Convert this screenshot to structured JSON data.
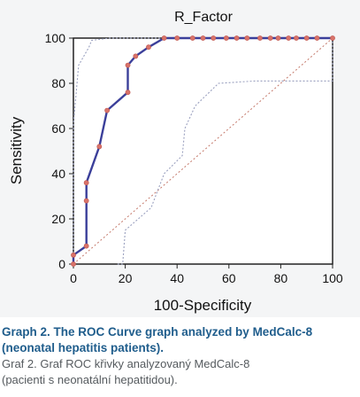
{
  "chart_data": {
    "type": "line",
    "title": "R_Factor",
    "xlabel": "100-Specificity",
    "ylabel": "Sensitivity",
    "xlim": [
      0,
      100
    ],
    "ylim": [
      0,
      100
    ],
    "x_ticks": [
      0,
      20,
      40,
      60,
      80,
      100
    ],
    "y_ticks": [
      0,
      20,
      40,
      60,
      80,
      100
    ],
    "grid": false,
    "series": [
      {
        "role": "roc",
        "color": "#3b3f9a",
        "points": [
          [
            0,
            0
          ],
          [
            0,
            4
          ],
          [
            5,
            8
          ],
          [
            5,
            28
          ],
          [
            5,
            36
          ],
          [
            10,
            52
          ],
          [
            13,
            68
          ],
          [
            21,
            76
          ],
          [
            21,
            88
          ],
          [
            24,
            92
          ],
          [
            29,
            96
          ],
          [
            35,
            100
          ],
          [
            40,
            100
          ],
          [
            46,
            100
          ],
          [
            50,
            100
          ],
          [
            54,
            100
          ],
          [
            59,
            100
          ],
          [
            63,
            100
          ],
          [
            67,
            100
          ],
          [
            72,
            100
          ],
          [
            76,
            100
          ],
          [
            79,
            100
          ],
          [
            83,
            100
          ],
          [
            86,
            100
          ],
          [
            90,
            100
          ],
          [
            94,
            100
          ],
          [
            100,
            100
          ]
        ]
      },
      {
        "role": "upper-confidence-bound",
        "color": "#9aa0bf",
        "points": [
          [
            0,
            0
          ],
          [
            0,
            62
          ],
          [
            2,
            88
          ],
          [
            6,
            96
          ],
          [
            7,
            99
          ],
          [
            14,
            100
          ],
          [
            100,
            100
          ]
        ]
      },
      {
        "role": "lower-confidence-bound",
        "color": "#9aa0bf",
        "points": [
          [
            17,
            0
          ],
          [
            19,
            0
          ],
          [
            20,
            15
          ],
          [
            30,
            25
          ],
          [
            35,
            40
          ],
          [
            42,
            48
          ],
          [
            43,
            60
          ],
          [
            47,
            70
          ],
          [
            56,
            80
          ],
          [
            70,
            81
          ],
          [
            100,
            81
          ],
          [
            100,
            100
          ]
        ]
      },
      {
        "role": "diagonal-reference",
        "color": "#c4786a",
        "points": [
          [
            0,
            0
          ],
          [
            100,
            100
          ]
        ]
      }
    ]
  },
  "caption": {
    "english_line1": "Graph 2. The ROC Curve graph analyzed by MedCalc-8",
    "english_line2": "(neonatal hepatitis patients).",
    "czech_line1": "Graf 2. Graf ROC křivky analyzovaný MedCalc-8",
    "czech_line2": "(pacienti s neonatální hepatitidou)."
  }
}
